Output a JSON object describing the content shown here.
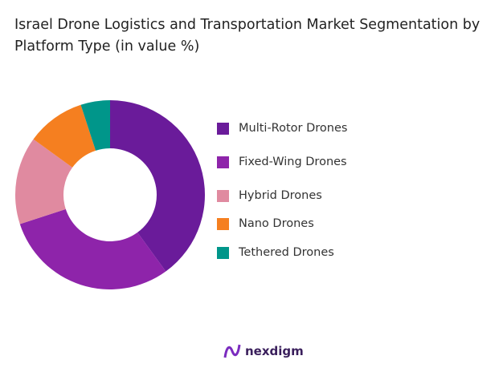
{
  "chart_data": {
    "type": "donut",
    "title": "Israel Drone Logistics and Transportation Market Segmentation by Platform Type (in value %)",
    "categories": [
      "Multi-Rotor Drones",
      "Fixed-Wing Drones",
      "Hybrid Drones",
      "Nano Drones",
      "Tethered Drones"
    ],
    "values": [
      40,
      30,
      15,
      10,
      5
    ],
    "colors": [
      "#6a1b9a",
      "#8e24aa",
      "#e08aa0",
      "#f57f20",
      "#00968a"
    ],
    "legend_position": "right"
  },
  "brand": {
    "name": "nexdigm"
  }
}
